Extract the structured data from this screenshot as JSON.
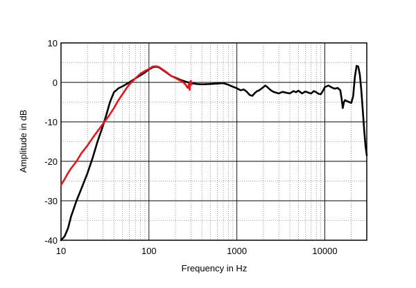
{
  "chart_data": {
    "type": "line",
    "title": "",
    "xlabel": "Frequency  in Hz",
    "ylabel": "Amplitude in dB",
    "xscale": "log",
    "xlim": [
      10,
      30000
    ],
    "ylim": [
      -40,
      10
    ],
    "grid": true,
    "legend": "none",
    "x_ticks": [
      10,
      100,
      1000,
      10000
    ],
    "x_tick_labels": [
      "10",
      "100",
      "1000",
      "10000"
    ],
    "y_ticks": [
      10,
      0,
      -10,
      -20,
      -30,
      -40
    ],
    "y_tick_labels": [
      "10",
      "0",
      "-10",
      "-20",
      "-30",
      "-40"
    ],
    "series": [
      {
        "color": "#000000",
        "points": [
          [
            10,
            -40
          ],
          [
            11,
            -39
          ],
          [
            12,
            -37
          ],
          [
            13,
            -34
          ],
          [
            15,
            -30
          ],
          [
            17,
            -27
          ],
          [
            20,
            -23
          ],
          [
            23,
            -19
          ],
          [
            26,
            -15
          ],
          [
            30,
            -11
          ],
          [
            33,
            -8
          ],
          [
            36,
            -5
          ],
          [
            40,
            -2.5
          ],
          [
            45,
            -1.5
          ],
          [
            50,
            -1
          ],
          [
            60,
            0
          ],
          [
            70,
            1
          ],
          [
            80,
            1.8
          ],
          [
            90,
            2.5
          ],
          [
            100,
            3.3
          ],
          [
            110,
            3.8
          ],
          [
            120,
            4
          ],
          [
            130,
            3.8
          ],
          [
            140,
            3.3
          ],
          [
            160,
            2.4
          ],
          [
            180,
            1.6
          ],
          [
            200,
            1.2
          ],
          [
            230,
            0.6
          ],
          [
            260,
            0.2
          ],
          [
            300,
            -0.2
          ],
          [
            350,
            -0.4
          ],
          [
            400,
            -0.5
          ],
          [
            500,
            -0.4
          ],
          [
            600,
            -0.3
          ],
          [
            700,
            -0.2
          ],
          [
            800,
            -0.6
          ],
          [
            900,
            -1.1
          ],
          [
            1000,
            -1.5
          ],
          [
            1100,
            -2
          ],
          [
            1200,
            -1.8
          ],
          [
            1300,
            -2.4
          ],
          [
            1400,
            -3.2
          ],
          [
            1500,
            -3.4
          ],
          [
            1600,
            -2.7
          ],
          [
            1700,
            -2.2
          ],
          [
            1800,
            -2
          ],
          [
            2000,
            -1.2
          ],
          [
            2100,
            -0.8
          ],
          [
            2200,
            -1.1
          ],
          [
            2400,
            -1.9
          ],
          [
            2600,
            -2.4
          ],
          [
            2800,
            -2.6
          ],
          [
            3000,
            -2.8
          ],
          [
            3300,
            -2.4
          ],
          [
            3600,
            -2.6
          ],
          [
            4000,
            -2.8
          ],
          [
            4400,
            -2.2
          ],
          [
            4700,
            -2.5
          ],
          [
            5000,
            -2.1
          ],
          [
            5500,
            -2.8
          ],
          [
            6000,
            -2.3
          ],
          [
            6500,
            -2.6
          ],
          [
            7000,
            -2.8
          ],
          [
            7500,
            -2.2
          ],
          [
            8000,
            -2.5
          ],
          [
            8500,
            -2.9
          ],
          [
            9000,
            -3
          ],
          [
            9500,
            -2.2
          ],
          [
            10000,
            -1.2
          ],
          [
            11000,
            -0.8
          ],
          [
            12000,
            -1.3
          ],
          [
            13000,
            -1.6
          ],
          [
            14000,
            -1.4
          ],
          [
            15000,
            -2
          ],
          [
            15500,
            -4
          ],
          [
            16000,
            -6.5
          ],
          [
            16500,
            -5
          ],
          [
            17000,
            -4.5
          ],
          [
            18000,
            -4.8
          ],
          [
            19000,
            -5
          ],
          [
            20000,
            -5.2
          ],
          [
            21000,
            -3.5
          ],
          [
            22000,
            1.5
          ],
          [
            23000,
            4.2
          ],
          [
            24000,
            4
          ],
          [
            25000,
            2
          ],
          [
            26000,
            -2
          ],
          [
            27000,
            -7
          ],
          [
            28000,
            -12
          ],
          [
            29000,
            -16
          ],
          [
            30000,
            -18.5
          ]
        ]
      },
      {
        "color": "#e8141b",
        "points": [
          [
            10,
            -26
          ],
          [
            11,
            -24.5
          ],
          [
            12,
            -23
          ],
          [
            13,
            -21.8
          ],
          [
            15,
            -20
          ],
          [
            17,
            -18
          ],
          [
            20,
            -16
          ],
          [
            23,
            -14
          ],
          [
            26,
            -12.4
          ],
          [
            30,
            -10.5
          ],
          [
            35,
            -8.5
          ],
          [
            40,
            -6.5
          ],
          [
            45,
            -4.5
          ],
          [
            50,
            -3
          ],
          [
            55,
            -1.6
          ],
          [
            60,
            -0.5
          ],
          [
            70,
            1
          ],
          [
            80,
            2.2
          ],
          [
            90,
            2.9
          ],
          [
            100,
            3.4
          ],
          [
            110,
            4
          ],
          [
            120,
            4.1
          ],
          [
            130,
            3.9
          ],
          [
            140,
            3.4
          ],
          [
            160,
            2.5
          ],
          [
            180,
            1.6
          ],
          [
            200,
            1.1
          ],
          [
            220,
            0.6
          ],
          [
            240,
            0.2
          ],
          [
            260,
            -0.5
          ],
          [
            275,
            -1.4
          ],
          [
            285,
            -0.5
          ],
          [
            290,
            -1.9
          ],
          [
            295,
            0.2
          ],
          [
            300,
            0.4
          ],
          [
            305,
            -0.6
          ]
        ]
      }
    ]
  }
}
